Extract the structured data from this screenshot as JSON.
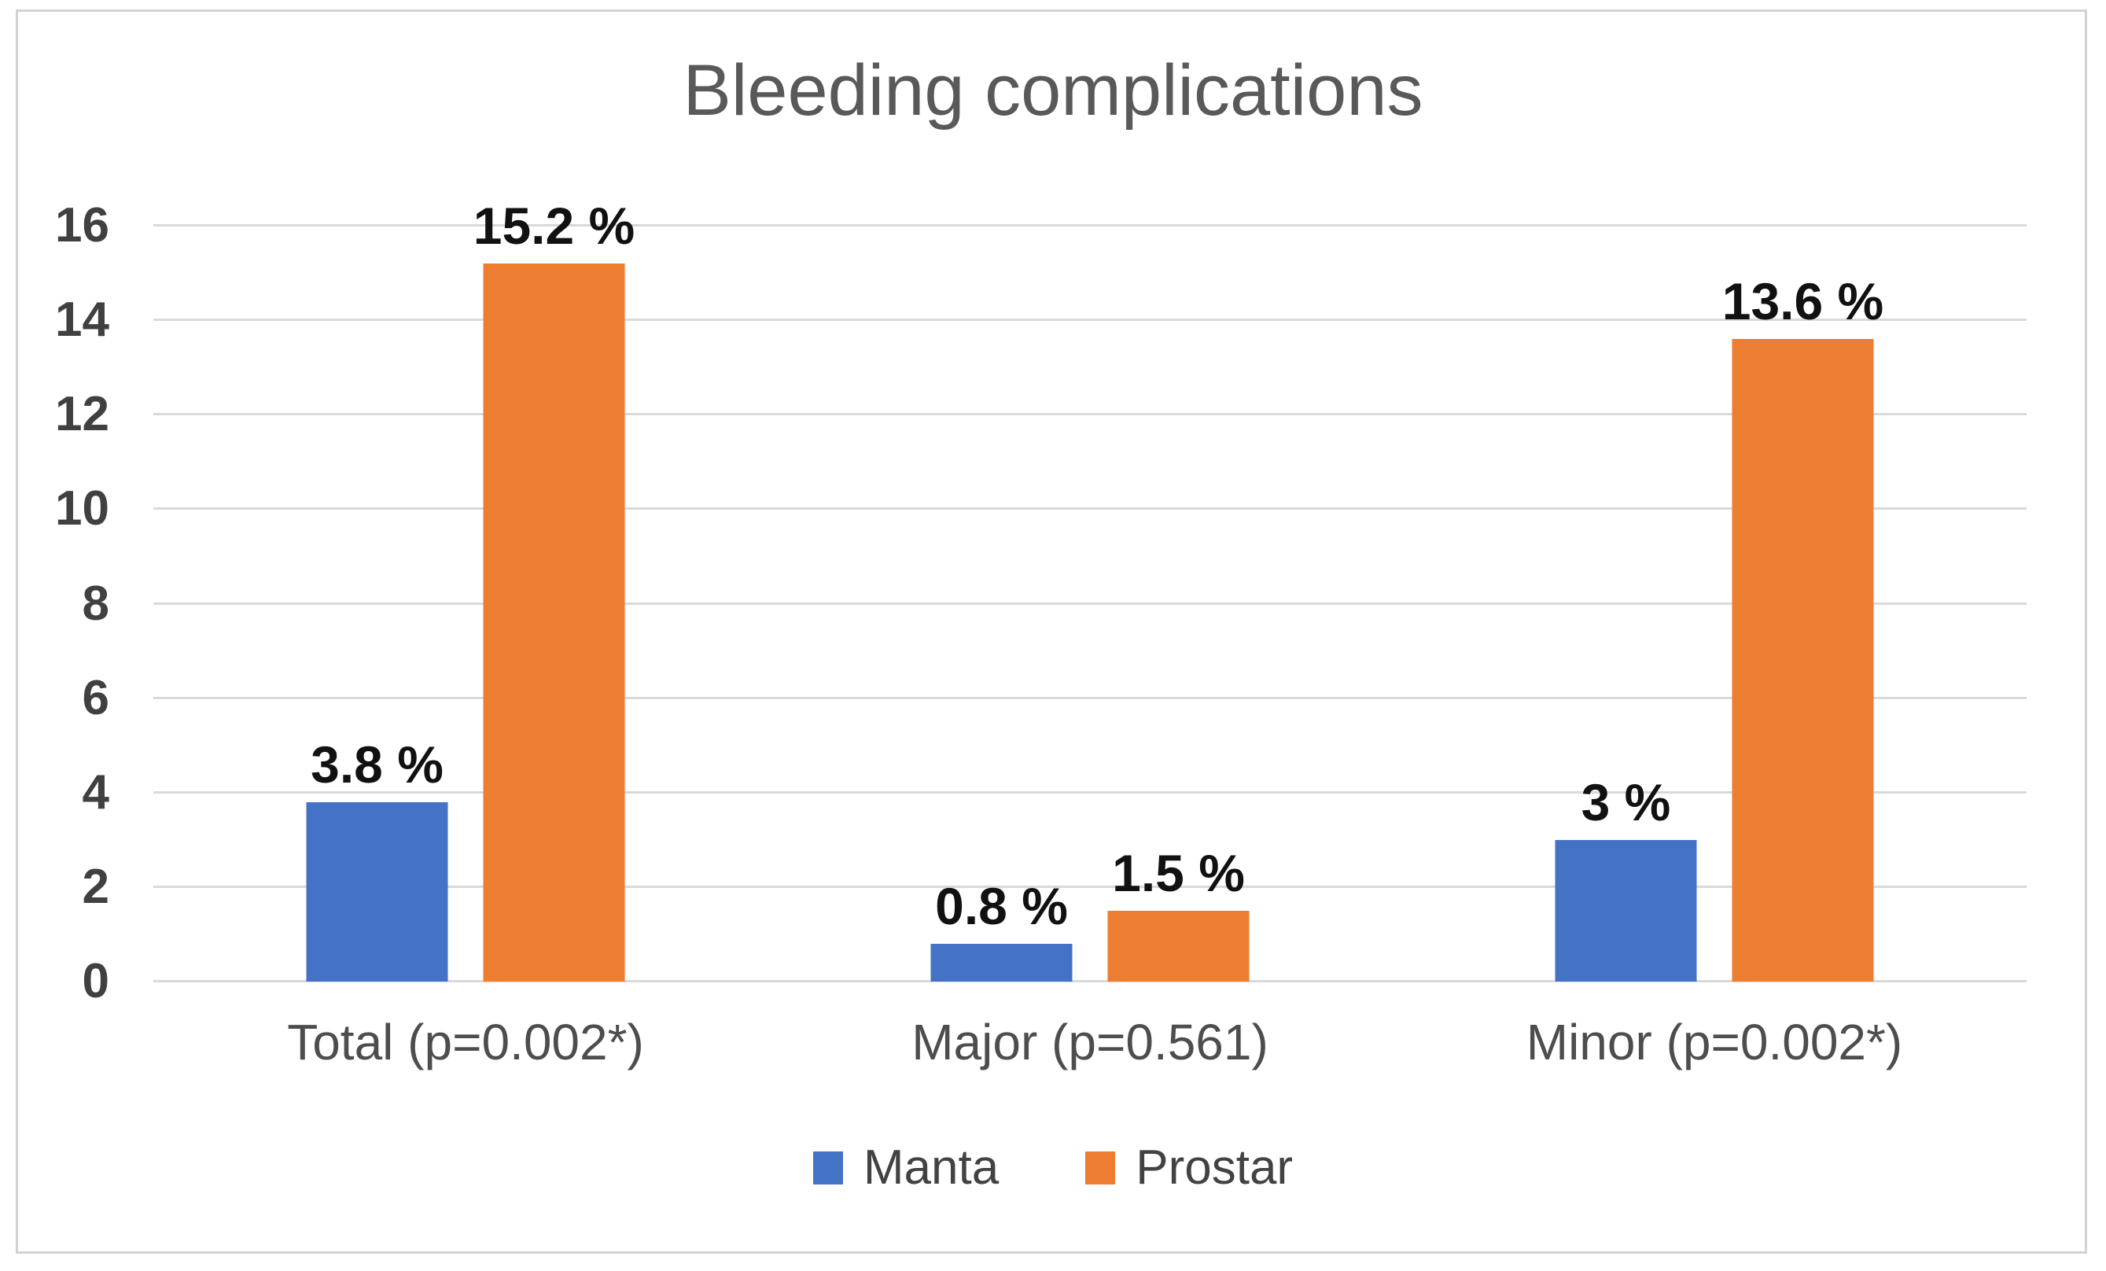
{
  "chart_data": {
    "type": "bar",
    "title": "Bleeding complications",
    "categories": [
      "Total (p=0.002*)",
      "Major (p=0.561)",
      "Minor (p=0.002*)"
    ],
    "series": [
      {
        "name": "Manta",
        "color": "#4472C4",
        "values": [
          3.8,
          0.8,
          3.0
        ],
        "value_labels": [
          "3.8 %",
          "0.8 %",
          "3 %"
        ]
      },
      {
        "name": "Prostar",
        "color": "#ED7D31",
        "values": [
          15.2,
          1.5,
          13.6
        ],
        "value_labels": [
          "15.2 %",
          "1.5 %",
          "13.6 %"
        ]
      }
    ],
    "xlabel": "",
    "ylabel": "",
    "ylim": [
      0,
      16
    ],
    "y_ticks": [
      0,
      2,
      4,
      6,
      8,
      10,
      12,
      14,
      16
    ],
    "grid": true,
    "legend_position": "bottom"
  },
  "colors": {
    "gridline": "#D9D9D9",
    "frame_border": "#D2D2D2",
    "title_text": "#595959",
    "axis_text": "#404040",
    "category_text": "#4D4D4D",
    "value_label_text": "#111111",
    "manta": "#4472C4",
    "prostar": "#ED7D31"
  }
}
